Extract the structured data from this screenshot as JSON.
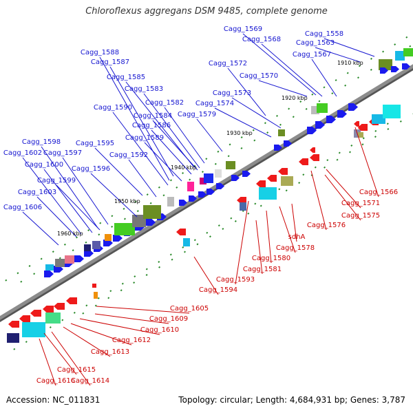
{
  "title": "Chloroflexus aggregans DSM 9485, complete genome",
  "footer": {
    "accession": "Accession: NC_011831",
    "summary": "Topology: circular; Length: 4,684,931 bp; Genes: 3,787"
  },
  "colors": {
    "forward_label": "#1515d0",
    "reverse_label": "#cc0000",
    "backbone": "#8c8c8c",
    "forward_gene": "#1a1aee",
    "reverse_gene": "#ee1a1a",
    "tick": "#2a8a2a"
  },
  "kbp_markers": [
    "1910 kbp",
    "1920 kbp",
    "1930 kbp",
    "1940 kbp",
    "1950 kbp",
    "1960 kbp"
  ],
  "forward_genes": [
    "Cagg_1558",
    "Cagg_1563",
    "Cagg_1567",
    "Cagg_1568",
    "Cagg_1569",
    "Cagg_1570",
    "Cagg_1572",
    "Cagg_1573",
    "Cagg_1574",
    "Cagg_1579",
    "Cagg_1582",
    "Cagg_1583",
    "Cagg_1584",
    "Cagg_1585",
    "Cagg_1586",
    "Cagg_1587",
    "Cagg_1588",
    "Cagg_1589",
    "Cagg_1590",
    "Cagg_1592",
    "Cagg_1595",
    "Cagg_1596",
    "Cagg_1597",
    "Cagg_1598",
    "Cagg_1599",
    "Cagg_1600",
    "Cagg_1602",
    "Cagg_1603",
    "Cagg_1606"
  ],
  "reverse_genes": [
    "Cagg_1566",
    "Cagg_1571",
    "Cagg_1575",
    "Cagg_1576",
    "sdhA",
    "Cagg_1578",
    "Cagg_1580",
    "Cagg_1581",
    "Cagg_1593",
    "Cagg_1594",
    "Cagg_1605",
    "Cagg_1609",
    "Cagg_1610",
    "Cagg_1612",
    "Cagg_1613",
    "Cagg_1614",
    "Cagg_1615",
    "Cagg_1616"
  ]
}
